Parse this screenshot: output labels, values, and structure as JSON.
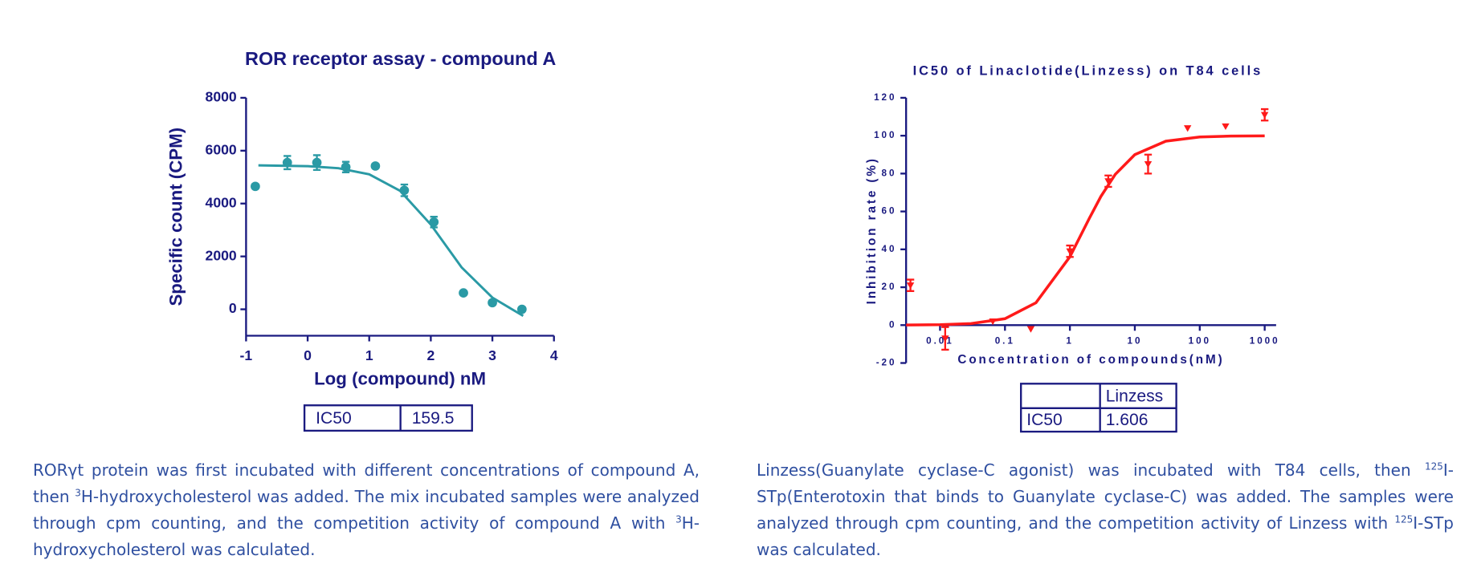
{
  "chart_data": [
    {
      "type": "scatter",
      "title": "ROR receptor assay - compound A",
      "xlabel": "Log (compound) nM",
      "ylabel": "Specific count (CPM)",
      "xlim": [
        -1,
        4
      ],
      "xticks": [
        -1,
        0,
        1,
        2,
        3,
        4
      ],
      "ylim": [
        -1000,
        8000
      ],
      "yticks": [
        0,
        2000,
        4000,
        6000,
        8000
      ],
      "points": {
        "color": "#2a9aa5",
        "x": [
          -0.85,
          -0.33,
          0.15,
          0.62,
          1.1,
          1.57,
          2.05,
          2.53,
          3.0,
          3.48
        ],
        "values": [
          4650,
          5550,
          5550,
          5380,
          5420,
          4500,
          3300,
          620,
          250,
          0
        ],
        "errors": [
          0,
          250,
          280,
          200,
          0,
          220,
          200,
          0,
          0,
          0
        ]
      },
      "fit": {
        "color": "#2a9aa5",
        "x": [
          -0.8,
          0,
          0.5,
          1,
          1.5,
          2,
          2.5,
          3,
          3.5
        ],
        "values": [
          5444,
          5414,
          5336,
          5106,
          4483,
          3206,
          1587,
          443,
          -250
        ]
      },
      "table": {
        "rows": [
          [
            "IC50",
            "159.5"
          ]
        ]
      },
      "caption": [
        {
          "text": "RORγt protein was first incubated with different concentrations of compound A, then "
        },
        {
          "sup": "3"
        },
        {
          "text": "H-hydroxycholesterol was added. The mix incubated samples were analyzed through cpm counting, and the competition activity of compound A with "
        },
        {
          "sup": "3"
        },
        {
          "text": "H-hydroxycholesterol was calculated."
        }
      ]
    },
    {
      "type": "scatter",
      "title": "IC50  of Linaclotide(Linzess) on T84 cells",
      "xlabel": "Concentration of compounds(nM)",
      "ylabel": "Inhibition rate (%)",
      "xscale": "log",
      "xlim": [
        0.003,
        1500
      ],
      "xticks": [
        0.01,
        0.1,
        1,
        10,
        100,
        1000
      ],
      "ylim": [
        -20,
        120
      ],
      "yticks": [
        -20,
        0,
        20,
        40,
        60,
        80,
        100,
        120
      ],
      "points": {
        "color": "#ff1a1a",
        "x": [
          0.0035,
          0.012,
          0.065,
          0.25,
          1,
          3.9,
          16,
          65,
          250,
          1000
        ],
        "values": [
          21,
          -7,
          2,
          -2,
          39,
          76,
          85,
          104,
          105,
          111
        ],
        "errors": [
          3,
          6,
          0,
          0,
          3,
          3,
          5,
          0,
          0,
          3
        ]
      },
      "fit": {
        "color": "#ff1a1a",
        "x": [
          0.003,
          0.01,
          0.03,
          0.1,
          0.3,
          1,
          2,
          3,
          5,
          10,
          30,
          100,
          300,
          1000
        ],
        "values": [
          0.05,
          0.23,
          0.83,
          3.4,
          11.8,
          36.1,
          56.5,
          67.9,
          79.6,
          90,
          97.1,
          99.3,
          99.8,
          99.9
        ]
      },
      "table": {
        "header": "Linzess",
        "rows": [
          [
            "IC50",
            "1.606"
          ]
        ]
      },
      "caption": [
        {
          "text": "Linzess(Guanylate cyclase-C agonist) was incubated with T84 cells, then "
        },
        {
          "sup": "125"
        },
        {
          "text": "I-STp(Enterotoxin that binds to Guanylate cyclase-C) was added. The samples were analyzed through cpm counting, and the competition activity of Linzess with "
        },
        {
          "sup": "125"
        },
        {
          "text": "I-STp was calculated."
        }
      ]
    }
  ]
}
